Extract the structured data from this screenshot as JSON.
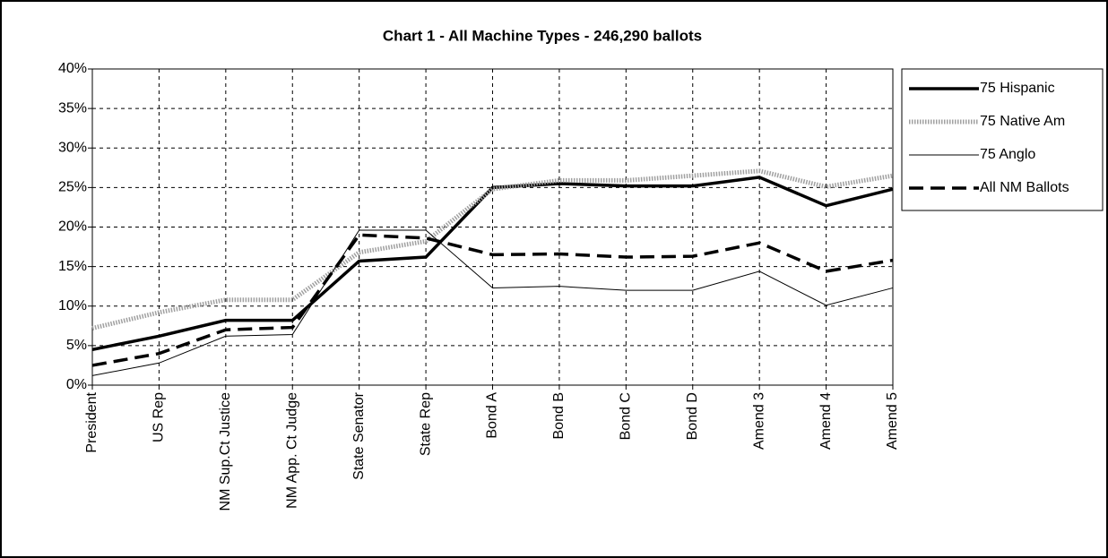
{
  "chart_data": {
    "type": "line",
    "title": "Chart 1 - All Machine Types - 246,290 ballots",
    "categories": [
      "President",
      "US Rep",
      "NM Sup.Ct Justice",
      "NM App. Ct Judge",
      "State Senator",
      "State Rep",
      "Bond A",
      "Bond B",
      "Bond C",
      "Bond D",
      "Amend 3",
      "Amend 4",
      "Amend 5"
    ],
    "series": [
      {
        "name": "75 Hispanic",
        "color": "#000000",
        "line_style": "thick",
        "values": [
          4.5,
          6.2,
          8.2,
          8.2,
          15.7,
          16.2,
          25.0,
          25.5,
          25.2,
          25.2,
          26.3,
          22.7,
          24.8
        ]
      },
      {
        "name": "75 Native Am",
        "color": "#a0a0a0",
        "line_style": "dotted",
        "values": [
          7.2,
          9.2,
          10.8,
          10.8,
          16.8,
          18.2,
          24.8,
          25.9,
          25.9,
          26.5,
          27.1,
          25.1,
          26.5
        ]
      },
      {
        "name": "75 Anglo",
        "color": "#000000",
        "line_style": "thin",
        "values": [
          1.2,
          2.8,
          6.2,
          6.4,
          19.6,
          19.6,
          12.3,
          12.5,
          12.0,
          12.0,
          14.4,
          10.1,
          12.3
        ]
      },
      {
        "name": "All NM Ballots",
        "color": "#000000",
        "line_style": "dashed",
        "values": [
          2.5,
          4.0,
          7.0,
          7.3,
          19.0,
          18.6,
          16.5,
          16.6,
          16.2,
          16.3,
          18.0,
          14.4,
          15.8
        ]
      }
    ],
    "ylim": [
      0,
      40
    ],
    "yticks": [
      {
        "value": 0,
        "label": "0%"
      },
      {
        "value": 5,
        "label": "5%"
      },
      {
        "value": 10,
        "label": "10%"
      },
      {
        "value": 15,
        "label": "15%"
      },
      {
        "value": 20,
        "label": "20%"
      },
      {
        "value": 25,
        "label": "25%"
      },
      {
        "value": 30,
        "label": "30%"
      },
      {
        "value": 35,
        "label": "35%"
      },
      {
        "value": 40,
        "label": "40%"
      }
    ],
    "grid": true,
    "legend": "right"
  }
}
